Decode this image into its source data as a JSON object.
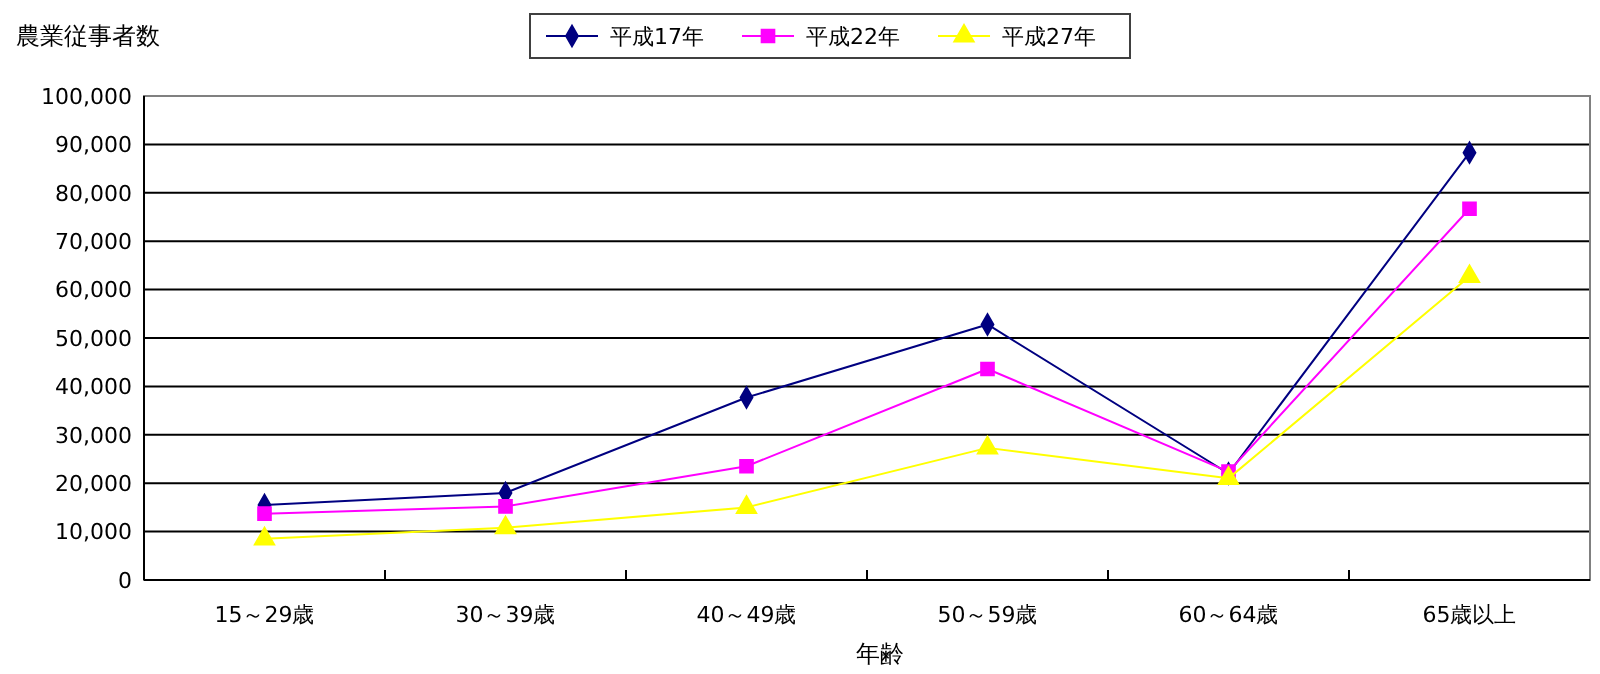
{
  "chart_data": {
    "type": "line",
    "ylabel": "農業従事者数",
    "xlabel": "年齢",
    "categories": [
      "15～29歳",
      "30～39歳",
      "40～49歳",
      "50～59歳",
      "60～64歳",
      "65歳以上"
    ],
    "series": [
      {
        "name": "平成17年",
        "color": "#000080",
        "marker": "diamond",
        "values": [
          15500,
          18000,
          37700,
          52800,
          22000,
          88300
        ]
      },
      {
        "name": "平成22年",
        "color": "#ff00ff",
        "marker": "square",
        "values": [
          13700,
          15200,
          23500,
          43600,
          22400,
          76700
        ]
      },
      {
        "name": "平成27年",
        "color": "#ffff00",
        "marker": "triangle",
        "values": [
          8500,
          10800,
          15000,
          27300,
          21000,
          62700
        ]
      }
    ],
    "ylim": [
      0,
      100000
    ],
    "yticks": [
      {
        "value": 0,
        "label": "0"
      },
      {
        "value": 10000,
        "label": "10,000"
      },
      {
        "value": 20000,
        "label": "20,000"
      },
      {
        "value": 30000,
        "label": "30,000"
      },
      {
        "value": 40000,
        "label": "40,000"
      },
      {
        "value": 50000,
        "label": "50,000"
      },
      {
        "value": 60000,
        "label": "60,000"
      },
      {
        "value": 70000,
        "label": "70,000"
      },
      {
        "value": 80000,
        "label": "80,000"
      },
      {
        "value": 90000,
        "label": "90,000"
      },
      {
        "value": 100000,
        "label": "100,000"
      }
    ],
    "grid": "y",
    "legend": "top",
    "line_style": "solid"
  }
}
